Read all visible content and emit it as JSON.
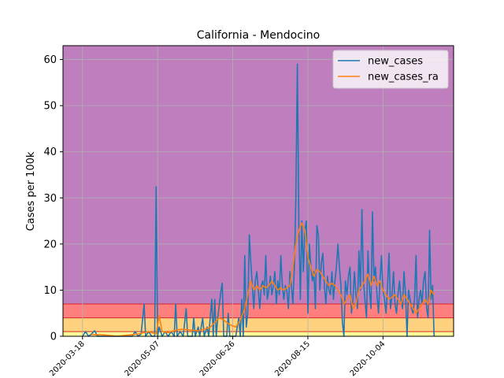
{
  "chart_data": {
    "type": "line",
    "title": "California - Mendocino",
    "xlabel": "",
    "ylabel": "Cases per 100k",
    "xlim": [
      "2020-03-05",
      "2020-11-20"
    ],
    "ylim": [
      0,
      63
    ],
    "x_ticks": [
      "2020-03-18",
      "2020-05-07",
      "2020-06-26",
      "2020-08-15",
      "2020-10-04"
    ],
    "y_ticks": [
      0,
      10,
      20,
      30,
      40,
      50,
      60
    ],
    "grid": true,
    "legend_position": "top-right",
    "background_bands": [
      {
        "from": 0,
        "to": 1,
        "color": "#ffff99"
      },
      {
        "from": 1,
        "to": 4,
        "color": "#ffd27f"
      },
      {
        "from": 4,
        "to": 7,
        "color": "#ff7f7f"
      },
      {
        "from": 7,
        "to": 63,
        "color": "#bf7fbf"
      }
    ],
    "band_boundary_color": "#d62728",
    "series": [
      {
        "name": "new_cases",
        "color": "#1f77b4",
        "points": [
          [
            "2020-03-18",
            0
          ],
          [
            "2020-03-20",
            1
          ],
          [
            "2020-03-22",
            0
          ],
          [
            "2020-03-24",
            0.5
          ],
          [
            "2020-03-26",
            1.2
          ],
          [
            "2020-03-28",
            0
          ],
          [
            "2020-04-01",
            0
          ],
          [
            "2020-04-20",
            0
          ],
          [
            "2020-04-22",
            1
          ],
          [
            "2020-04-24",
            0
          ],
          [
            "2020-04-26",
            0.5
          ],
          [
            "2020-04-28",
            7
          ],
          [
            "2020-04-29",
            0
          ],
          [
            "2020-05-01",
            1
          ],
          [
            "2020-05-03",
            0
          ],
          [
            "2020-05-05",
            0
          ],
          [
            "2020-05-06",
            32.4
          ],
          [
            "2020-05-07",
            0
          ],
          [
            "2020-05-08",
            2
          ],
          [
            "2020-05-10",
            0
          ],
          [
            "2020-05-12",
            1
          ],
          [
            "2020-05-14",
            0
          ],
          [
            "2020-05-16",
            1
          ],
          [
            "2020-05-18",
            0
          ],
          [
            "2020-05-19",
            7
          ],
          [
            "2020-05-20",
            0
          ],
          [
            "2020-05-22",
            1
          ],
          [
            "2020-05-24",
            0
          ],
          [
            "2020-05-26",
            6
          ],
          [
            "2020-05-27",
            0
          ],
          [
            "2020-05-30",
            0
          ],
          [
            "2020-05-31",
            4
          ],
          [
            "2020-06-01",
            0
          ],
          [
            "2020-06-03",
            2
          ],
          [
            "2020-06-04",
            0
          ],
          [
            "2020-06-06",
            4
          ],
          [
            "2020-06-07",
            0
          ],
          [
            "2020-06-09",
            2
          ],
          [
            "2020-06-10",
            0
          ],
          [
            "2020-06-12",
            8
          ],
          [
            "2020-06-13",
            0
          ],
          [
            "2020-06-14",
            8
          ],
          [
            "2020-06-15",
            0
          ],
          [
            "2020-06-16",
            4
          ],
          [
            "2020-06-18",
            9.5
          ],
          [
            "2020-06-19",
            11.5
          ],
          [
            "2020-06-20",
            0
          ],
          [
            "2020-06-22",
            0
          ],
          [
            "2020-06-23",
            5
          ],
          [
            "2020-06-24",
            0
          ],
          [
            "2020-06-26",
            0
          ],
          [
            "2020-06-28",
            0
          ],
          [
            "2020-06-30",
            4
          ],
          [
            "2020-07-01",
            0
          ],
          [
            "2020-07-02",
            8
          ],
          [
            "2020-07-03",
            0
          ],
          [
            "2020-07-04",
            17.5
          ],
          [
            "2020-07-05",
            2
          ],
          [
            "2020-07-06",
            5
          ],
          [
            "2020-07-07",
            22
          ],
          [
            "2020-07-08",
            16
          ],
          [
            "2020-07-09",
            11
          ],
          [
            "2020-07-10",
            6
          ],
          [
            "2020-07-11",
            12
          ],
          [
            "2020-07-12",
            14
          ],
          [
            "2020-07-13",
            10
          ],
          [
            "2020-07-14",
            6
          ],
          [
            "2020-07-15",
            11
          ],
          [
            "2020-07-16",
            12
          ],
          [
            "2020-07-17",
            9
          ],
          [
            "2020-07-18",
            17.5
          ],
          [
            "2020-07-19",
            8
          ],
          [
            "2020-07-20",
            10
          ],
          [
            "2020-07-21",
            13
          ],
          [
            "2020-07-22",
            9
          ],
          [
            "2020-07-23",
            11
          ],
          [
            "2020-07-24",
            14
          ],
          [
            "2020-07-25",
            7
          ],
          [
            "2020-07-26",
            12
          ],
          [
            "2020-07-27",
            9
          ],
          [
            "2020-07-28",
            17.5
          ],
          [
            "2020-07-29",
            11
          ],
          [
            "2020-07-30",
            8
          ],
          [
            "2020-07-31",
            11
          ],
          [
            "2020-08-01",
            10
          ],
          [
            "2020-08-02",
            6
          ],
          [
            "2020-08-03",
            14
          ],
          [
            "2020-08-04",
            11
          ],
          [
            "2020-08-05",
            7
          ],
          [
            "2020-08-06",
            15
          ],
          [
            "2020-08-07",
            30
          ],
          [
            "2020-08-08",
            59
          ],
          [
            "2020-08-09",
            24
          ],
          [
            "2020-08-10",
            8
          ],
          [
            "2020-08-11",
            25
          ],
          [
            "2020-08-12",
            14
          ],
          [
            "2020-08-13",
            23
          ],
          [
            "2020-08-14",
            25
          ],
          [
            "2020-08-15",
            5
          ],
          [
            "2020-08-16",
            20
          ],
          [
            "2020-08-17",
            15
          ],
          [
            "2020-08-18",
            12
          ],
          [
            "2020-08-19",
            14
          ],
          [
            "2020-08-20",
            6
          ],
          [
            "2020-08-21",
            24
          ],
          [
            "2020-08-22",
            22
          ],
          [
            "2020-08-23",
            10
          ],
          [
            "2020-08-24",
            16
          ],
          [
            "2020-08-25",
            18
          ],
          [
            "2020-08-26",
            11
          ],
          [
            "2020-08-27",
            7
          ],
          [
            "2020-08-28",
            13
          ],
          [
            "2020-08-29",
            10
          ],
          [
            "2020-08-30",
            9
          ],
          [
            "2020-08-31",
            14
          ],
          [
            "2020-09-01",
            8
          ],
          [
            "2020-09-02",
            12
          ],
          [
            "2020-09-03",
            15
          ],
          [
            "2020-09-04",
            20
          ],
          [
            "2020-09-05",
            15
          ],
          [
            "2020-09-06",
            11
          ],
          [
            "2020-09-07",
            3
          ],
          [
            "2020-09-08",
            0
          ],
          [
            "2020-09-09",
            12
          ],
          [
            "2020-09-10",
            9
          ],
          [
            "2020-09-11",
            13
          ],
          [
            "2020-09-12",
            15
          ],
          [
            "2020-09-13",
            5
          ],
          [
            "2020-09-14",
            8
          ],
          [
            "2020-09-15",
            14
          ],
          [
            "2020-09-16",
            9
          ],
          [
            "2020-09-17",
            6
          ],
          [
            "2020-09-18",
            18.5
          ],
          [
            "2020-09-19",
            10
          ],
          [
            "2020-09-20",
            27.5
          ],
          [
            "2020-09-21",
            12
          ],
          [
            "2020-09-22",
            8
          ],
          [
            "2020-09-23",
            4
          ],
          [
            "2020-09-24",
            18.5
          ],
          [
            "2020-09-25",
            10
          ],
          [
            "2020-09-26",
            6
          ],
          [
            "2020-09-27",
            27
          ],
          [
            "2020-09-28",
            12
          ],
          [
            "2020-09-29",
            15
          ],
          [
            "2020-09-30",
            9
          ],
          [
            "2020-10-01",
            5
          ],
          [
            "2020-10-02",
            12
          ],
          [
            "2020-10-03",
            17.5
          ],
          [
            "2020-10-04",
            10
          ],
          [
            "2020-10-05",
            8
          ],
          [
            "2020-10-06",
            5
          ],
          [
            "2020-10-07",
            11
          ],
          [
            "2020-10-08",
            18
          ],
          [
            "2020-10-09",
            6
          ],
          [
            "2020-10-10",
            9
          ],
          [
            "2020-10-11",
            14
          ],
          [
            "2020-10-12",
            7
          ],
          [
            "2020-10-13",
            5
          ],
          [
            "2020-10-14",
            9
          ],
          [
            "2020-10-15",
            12
          ],
          [
            "2020-10-16",
            8
          ],
          [
            "2020-10-17",
            6
          ],
          [
            "2020-10-18",
            14
          ],
          [
            "2020-10-19",
            9
          ],
          [
            "2020-10-20",
            0
          ],
          [
            "2020-10-21",
            10
          ],
          [
            "2020-10-22",
            8
          ],
          [
            "2020-10-23",
            6
          ],
          [
            "2020-10-24",
            5
          ],
          [
            "2020-10-25",
            8
          ],
          [
            "2020-10-26",
            17.5
          ],
          [
            "2020-10-27",
            4
          ],
          [
            "2020-10-28",
            8
          ],
          [
            "2020-10-29",
            10
          ],
          [
            "2020-10-30",
            7
          ],
          [
            "2020-10-31",
            12
          ],
          [
            "2020-11-01",
            14
          ],
          [
            "2020-11-02",
            6
          ],
          [
            "2020-11-03",
            4
          ],
          [
            "2020-11-04",
            23
          ],
          [
            "2020-11-05",
            8
          ],
          [
            "2020-11-06",
            11
          ],
          [
            "2020-11-07",
            0
          ]
        ]
      },
      {
        "name": "new_cases_ra",
        "color": "#ff7f0e",
        "points": [
          [
            "2020-03-24",
            0.4
          ],
          [
            "2020-04-01",
            0.3
          ],
          [
            "2020-04-10",
            0
          ],
          [
            "2020-04-24",
            0.5
          ],
          [
            "2020-05-01",
            1
          ],
          [
            "2020-05-06",
            0.5
          ],
          [
            "2020-05-08",
            4.5
          ],
          [
            "2020-05-10",
            1
          ],
          [
            "2020-05-14",
            0.8
          ],
          [
            "2020-05-20",
            1.4
          ],
          [
            "2020-05-24",
            1.5
          ],
          [
            "2020-05-30",
            1.3
          ],
          [
            "2020-06-03",
            1.2
          ],
          [
            "2020-06-07",
            1.5
          ],
          [
            "2020-06-11",
            2
          ],
          [
            "2020-06-14",
            3
          ],
          [
            "2020-06-17",
            4
          ],
          [
            "2020-06-20",
            3.5
          ],
          [
            "2020-06-24",
            2.5
          ],
          [
            "2020-06-28",
            2
          ],
          [
            "2020-07-01",
            3.5
          ],
          [
            "2020-07-04",
            6
          ],
          [
            "2020-07-06",
            9
          ],
          [
            "2020-07-08",
            12
          ],
          [
            "2020-07-10",
            10
          ],
          [
            "2020-07-12",
            11
          ],
          [
            "2020-07-14",
            10
          ],
          [
            "2020-07-16",
            11
          ],
          [
            "2020-07-18",
            10.5
          ],
          [
            "2020-07-20",
            11
          ],
          [
            "2020-07-22",
            12
          ],
          [
            "2020-07-24",
            11
          ],
          [
            "2020-07-26",
            10
          ],
          [
            "2020-07-28",
            10.5
          ],
          [
            "2020-07-30",
            10
          ],
          [
            "2020-08-01",
            10.5
          ],
          [
            "2020-08-03",
            11
          ],
          [
            "2020-08-05",
            15
          ],
          [
            "2020-08-07",
            20
          ],
          [
            "2020-08-09",
            23
          ],
          [
            "2020-08-11",
            24.5
          ],
          [
            "2020-08-13",
            23
          ],
          [
            "2020-08-15",
            17
          ],
          [
            "2020-08-17",
            15
          ],
          [
            "2020-08-19",
            13
          ],
          [
            "2020-08-21",
            14.5
          ],
          [
            "2020-08-23",
            14
          ],
          [
            "2020-08-25",
            13
          ],
          [
            "2020-08-27",
            12
          ],
          [
            "2020-08-29",
            11
          ],
          [
            "2020-08-31",
            11.5
          ],
          [
            "2020-09-02",
            11
          ],
          [
            "2020-09-04",
            10
          ],
          [
            "2020-09-06",
            9
          ],
          [
            "2020-09-08",
            7
          ],
          [
            "2020-09-10",
            8
          ],
          [
            "2020-09-12",
            9
          ],
          [
            "2020-09-14",
            6
          ],
          [
            "2020-09-16",
            7
          ],
          [
            "2020-09-18",
            10
          ],
          [
            "2020-09-20",
            11
          ],
          [
            "2020-09-22",
            12
          ],
          [
            "2020-09-24",
            13.5
          ],
          [
            "2020-09-26",
            11
          ],
          [
            "2020-09-28",
            13
          ],
          [
            "2020-09-30",
            11
          ],
          [
            "2020-10-02",
            12
          ],
          [
            "2020-10-04",
            10
          ],
          [
            "2020-10-06",
            9
          ],
          [
            "2020-10-08",
            8
          ],
          [
            "2020-10-10",
            8.5
          ],
          [
            "2020-10-12",
            9
          ],
          [
            "2020-10-14",
            8
          ],
          [
            "2020-10-16",
            7
          ],
          [
            "2020-10-18",
            9
          ],
          [
            "2020-10-20",
            8
          ],
          [
            "2020-10-22",
            7
          ],
          [
            "2020-10-24",
            6
          ],
          [
            "2020-10-26",
            5
          ],
          [
            "2020-10-28",
            6
          ],
          [
            "2020-10-30",
            7
          ],
          [
            "2020-11-01",
            8
          ],
          [
            "2020-11-03",
            7
          ],
          [
            "2020-11-05",
            10
          ],
          [
            "2020-11-07",
            9
          ]
        ]
      }
    ]
  }
}
